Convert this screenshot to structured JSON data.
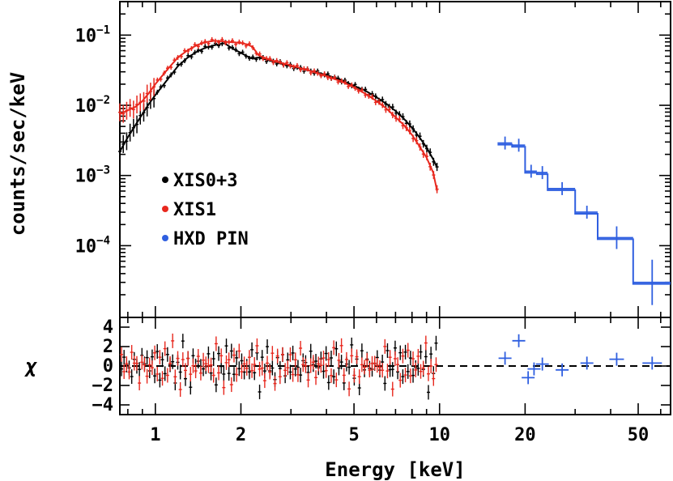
{
  "chart_data": {
    "type": "scatter",
    "title": "",
    "xlabel": "Energy [keV]",
    "xscale": "log",
    "xlim": [
      0.75,
      65
    ],
    "x_ticks": [
      1,
      2,
      5,
      10,
      20,
      50
    ],
    "x_tick_labels": [
      "1",
      "2",
      "5",
      "10",
      "20",
      "50"
    ],
    "top_panel": {
      "ylabel": "counts/sec/keV",
      "yscale": "log",
      "ylim": [
        9.5e-06,
        0.3
      ],
      "y_ticks": [
        {
          "base": "10",
          "exp": "−1",
          "value": 0.1
        },
        {
          "base": "10",
          "exp": "−2",
          "value": 0.01
        },
        {
          "base": "10",
          "exp": "−3",
          "value": 0.001
        },
        {
          "base": "10",
          "exp": "−4",
          "value": 0.0001
        }
      ]
    },
    "bottom_panel": {
      "ylabel": "χ",
      "ylim": [
        -5,
        5
      ],
      "y_ticks": [
        4,
        2,
        0,
        -2,
        -4
      ],
      "y_tick_labels": [
        "4",
        "2",
        "0",
        "−2",
        "−4"
      ],
      "reference_line": 0
    },
    "legend": {
      "position": "left-middle",
      "entries": [
        {
          "label": "XIS0+3",
          "color": "#000000"
        },
        {
          "label": "XIS1",
          "color": "#e8281e"
        },
        {
          "label": "HXD PIN",
          "color": "#2f5fe0"
        }
      ]
    },
    "series": [
      {
        "name": "XIS0+3",
        "color": "#000000",
        "spectrum": [
          {
            "x": 0.75,
            "y": 0.0022
          },
          {
            "x": 0.8,
            "y": 0.0035
          },
          {
            "x": 0.85,
            "y": 0.0052
          },
          {
            "x": 0.9,
            "y": 0.0075
          },
          {
            "x": 0.95,
            "y": 0.0105
          },
          {
            "x": 1.0,
            "y": 0.014
          },
          {
            "x": 1.1,
            "y": 0.023
          },
          {
            "x": 1.2,
            "y": 0.036
          },
          {
            "x": 1.3,
            "y": 0.048
          },
          {
            "x": 1.4,
            "y": 0.058
          },
          {
            "x": 1.5,
            "y": 0.066
          },
          {
            "x": 1.6,
            "y": 0.071
          },
          {
            "x": 1.7,
            "y": 0.075
          },
          {
            "x": 1.75,
            "y": 0.077
          },
          {
            "x": 1.8,
            "y": 0.071
          },
          {
            "x": 1.9,
            "y": 0.062
          },
          {
            "x": 2.0,
            "y": 0.056
          },
          {
            "x": 2.1,
            "y": 0.05
          },
          {
            "x": 2.2,
            "y": 0.046
          },
          {
            "x": 2.3,
            "y": 0.048
          },
          {
            "x": 2.5,
            "y": 0.044
          },
          {
            "x": 3.0,
            "y": 0.036
          },
          {
            "x": 3.5,
            "y": 0.031
          },
          {
            "x": 4.0,
            "y": 0.027
          },
          {
            "x": 4.5,
            "y": 0.023
          },
          {
            "x": 5.0,
            "y": 0.019
          },
          {
            "x": 5.5,
            "y": 0.016
          },
          {
            "x": 6.0,
            "y": 0.013
          },
          {
            "x": 6.5,
            "y": 0.0105
          },
          {
            "x": 7.0,
            "y": 0.0083
          },
          {
            "x": 7.5,
            "y": 0.0064
          },
          {
            "x": 8.0,
            "y": 0.0048
          },
          {
            "x": 8.5,
            "y": 0.0035
          },
          {
            "x": 9.0,
            "y": 0.0025
          },
          {
            "x": 9.5,
            "y": 0.0017
          },
          {
            "x": 9.8,
            "y": 0.0013
          }
        ],
        "residuals": [
          {
            "x": 0.77,
            "y": -0.5
          },
          {
            "x": 0.82,
            "y": 1.2
          },
          {
            "x": 0.87,
            "y": -1.0
          },
          {
            "x": 0.93,
            "y": 0.8
          },
          {
            "x": 1.0,
            "y": -1.5
          },
          {
            "x": 1.08,
            "y": 1.5
          },
          {
            "x": 1.15,
            "y": 0.3
          },
          {
            "x": 1.25,
            "y": -0.8
          },
          {
            "x": 1.35,
            "y": 2.0
          },
          {
            "x": 1.45,
            "y": -1.2
          },
          {
            "x": 1.55,
            "y": 1.8
          },
          {
            "x": 1.65,
            "y": -0.6
          },
          {
            "x": 1.75,
            "y": 2.4
          },
          {
            "x": 1.9,
            "y": -1.4
          },
          {
            "x": 2.05,
            "y": 1.0
          },
          {
            "x": 2.25,
            "y": -2.0
          },
          {
            "x": 2.45,
            "y": 1.6
          },
          {
            "x": 2.7,
            "y": -0.9
          },
          {
            "x": 3.0,
            "y": 2.0
          },
          {
            "x": 3.3,
            "y": -1.7
          },
          {
            "x": 3.6,
            "y": 1.3
          },
          {
            "x": 4.0,
            "y": -2.3
          },
          {
            "x": 4.4,
            "y": 1.9
          },
          {
            "x": 4.8,
            "y": -1.0
          },
          {
            "x": 5.2,
            "y": 2.2
          },
          {
            "x": 5.7,
            "y": -1.8
          },
          {
            "x": 6.2,
            "y": 1.1
          },
          {
            "x": 6.8,
            "y": -2.0
          },
          {
            "x": 7.4,
            "y": 1.5
          },
          {
            "x": 8.0,
            "y": -1.1
          },
          {
            "x": 8.6,
            "y": 1.2
          },
          {
            "x": 9.2,
            "y": -0.6
          },
          {
            "x": 9.7,
            "y": 0.5
          }
        ]
      },
      {
        "name": "XIS1",
        "color": "#e8281e",
        "spectrum": [
          {
            "x": 0.75,
            "y": 0.0075
          },
          {
            "x": 0.8,
            "y": 0.0085
          },
          {
            "x": 0.85,
            "y": 0.0095
          },
          {
            "x": 0.9,
            "y": 0.0115
          },
          {
            "x": 0.95,
            "y": 0.015
          },
          {
            "x": 1.0,
            "y": 0.02
          },
          {
            "x": 1.1,
            "y": 0.032
          },
          {
            "x": 1.2,
            "y": 0.048
          },
          {
            "x": 1.3,
            "y": 0.061
          },
          {
            "x": 1.4,
            "y": 0.072
          },
          {
            "x": 1.5,
            "y": 0.079
          },
          {
            "x": 1.6,
            "y": 0.083
          },
          {
            "x": 1.7,
            "y": 0.082
          },
          {
            "x": 1.8,
            "y": 0.08
          },
          {
            "x": 1.9,
            "y": 0.079
          },
          {
            "x": 2.0,
            "y": 0.077
          },
          {
            "x": 2.1,
            "y": 0.074
          },
          {
            "x": 2.2,
            "y": 0.068
          },
          {
            "x": 2.3,
            "y": 0.052
          },
          {
            "x": 2.5,
            "y": 0.045
          },
          {
            "x": 3.0,
            "y": 0.037
          },
          {
            "x": 3.5,
            "y": 0.031
          },
          {
            "x": 4.0,
            "y": 0.026
          },
          {
            "x": 4.5,
            "y": 0.022
          },
          {
            "x": 5.0,
            "y": 0.018
          },
          {
            "x": 5.5,
            "y": 0.0145
          },
          {
            "x": 6.0,
            "y": 0.0115
          },
          {
            "x": 6.5,
            "y": 0.009
          },
          {
            "x": 7.0,
            "y": 0.0068
          },
          {
            "x": 7.5,
            "y": 0.0052
          },
          {
            "x": 8.0,
            "y": 0.0038
          },
          {
            "x": 8.5,
            "y": 0.0026
          },
          {
            "x": 9.0,
            "y": 0.0018
          },
          {
            "x": 9.5,
            "y": 0.0011
          },
          {
            "x": 9.8,
            "y": 0.0006
          }
        ],
        "residuals": [
          {
            "x": 0.76,
            "y": 0.8
          },
          {
            "x": 0.8,
            "y": -0.5
          },
          {
            "x": 0.85,
            "y": 1.4
          },
          {
            "x": 0.9,
            "y": -1.2
          },
          {
            "x": 0.97,
            "y": 2.1
          },
          {
            "x": 1.05,
            "y": -0.8
          },
          {
            "x": 1.12,
            "y": 1.2
          },
          {
            "x": 1.2,
            "y": -1.9
          },
          {
            "x": 1.3,
            "y": 0.6
          },
          {
            "x": 1.4,
            "y": 1.5
          },
          {
            "x": 1.5,
            "y": -1.6
          },
          {
            "x": 1.6,
            "y": 0.9
          },
          {
            "x": 1.7,
            "y": -2.2
          },
          {
            "x": 1.85,
            "y": 1.7
          },
          {
            "x": 2.0,
            "y": -0.7
          },
          {
            "x": 2.15,
            "y": 2.1
          },
          {
            "x": 2.35,
            "y": -1.3
          },
          {
            "x": 2.6,
            "y": 1.4
          },
          {
            "x": 2.85,
            "y": -2.1
          },
          {
            "x": 3.15,
            "y": 0.9
          },
          {
            "x": 3.45,
            "y": 2.3
          },
          {
            "x": 3.8,
            "y": -1.1
          },
          {
            "x": 4.2,
            "y": 1.3
          },
          {
            "x": 4.6,
            "y": -2.4
          },
          {
            "x": 5.0,
            "y": 0.7
          },
          {
            "x": 5.45,
            "y": -3.0
          },
          {
            "x": 5.95,
            "y": 1.8
          },
          {
            "x": 6.5,
            "y": -1.4
          },
          {
            "x": 7.1,
            "y": 1.5
          },
          {
            "x": 7.7,
            "y": -1.8
          },
          {
            "x": 8.3,
            "y": 1.0
          },
          {
            "x": 8.9,
            "y": -0.9
          },
          {
            "x": 9.5,
            "y": 0.6
          }
        ]
      },
      {
        "name": "HXD PIN",
        "color": "#2f5fe0",
        "spectrum": [
          {
            "x": 17.0,
            "y": 0.0029,
            "xerr": [
              16.0,
              18.0
            ]
          },
          {
            "x": 19.0,
            "y": 0.0027,
            "xerr": [
              18.0,
              20.0
            ]
          },
          {
            "x": 21.0,
            "y": 0.00115,
            "xerr": [
              20.0,
              22.0
            ]
          },
          {
            "x": 23.0,
            "y": 0.0011,
            "xerr": [
              22.0,
              24.0
            ]
          },
          {
            "x": 27.0,
            "y": 0.00065,
            "xerr": [
              24.0,
              30.0
            ]
          },
          {
            "x": 33.0,
            "y": 0.0003,
            "xerr": [
              30.0,
              36.0
            ]
          },
          {
            "x": 42.0,
            "y": 0.00013,
            "xerr": [
              36.0,
              48.0
            ]
          },
          {
            "x": 56.0,
            "y": 3e-05,
            "xerr": [
              48.0,
              65.0
            ]
          }
        ],
        "residuals": [
          {
            "x": 17.0,
            "y": 0.8
          },
          {
            "x": 19.0,
            "y": 2.6
          },
          {
            "x": 20.5,
            "y": -1.2
          },
          {
            "x": 21.5,
            "y": -0.3
          },
          {
            "x": 23.0,
            "y": 0.2
          },
          {
            "x": 27.0,
            "y": -0.4
          },
          {
            "x": 33.0,
            "y": 0.3
          },
          {
            "x": 42.0,
            "y": 0.7
          },
          {
            "x": 56.0,
            "y": 0.3
          }
        ]
      }
    ]
  }
}
